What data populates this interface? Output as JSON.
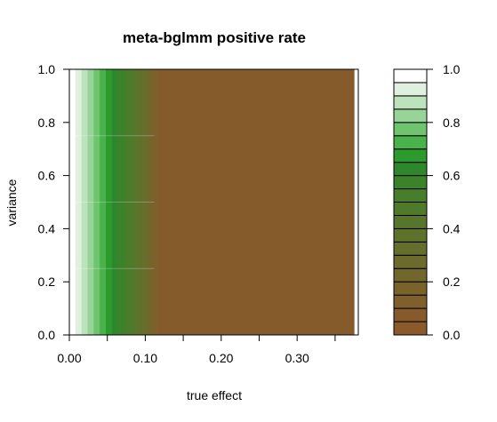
{
  "chart_data": {
    "type": "heatmap",
    "title": "meta-bglmm positive rate",
    "xlabel": "true effect",
    "ylabel": "variance",
    "xlim": [
      0.0,
      0.375
    ],
    "ylim": [
      0.0,
      1.0
    ],
    "x_ticks": [
      0.0,
      0.05,
      0.1,
      0.15,
      0.2,
      0.25,
      0.3,
      0.35
    ],
    "x_tick_labels": [
      "0.00",
      "",
      "0.10",
      "",
      "0.20",
      "",
      "0.30",
      ""
    ],
    "y_ticks": [
      0.0,
      0.2,
      0.4,
      0.6,
      0.8,
      1.0
    ],
    "y_tick_labels": [
      "0.0",
      "0.2",
      "0.4",
      "0.6",
      "0.8",
      "1.0"
    ],
    "colorbar": {
      "range": [
        0.0,
        1.0
      ],
      "levels": 20,
      "ticks": [
        0.0,
        0.2,
        0.4,
        0.6,
        0.8,
        1.0
      ],
      "tick_labels": [
        "0.0",
        "0.2",
        "0.4",
        "0.6",
        "0.8",
        "1.0"
      ],
      "colors": [
        "#8b5a2b",
        "#855b2b",
        "#7f5f2b",
        "#79632b",
        "#72672b",
        "#6c6b2b",
        "#666e2b",
        "#5f722b",
        "#58762b",
        "#507a2b",
        "#477e2b",
        "#3c822b",
        "#2e872b",
        "#2d9a2d",
        "#4ab24a",
        "#70c470",
        "#98d498",
        "#bde3bd",
        "#dff0df",
        "#ffffff"
      ]
    },
    "contour_level_boundaries_x": [
      0.0,
      0.008,
      0.016,
      0.024,
      0.032,
      0.04,
      0.048,
      0.056,
      0.064,
      0.072,
      0.079,
      0.085,
      0.09,
      0.095,
      0.1,
      0.104,
      0.108,
      0.112,
      0.116,
      0.375
    ],
    "description_note": "positive rate falls from 1 near true effect 0 to about 0 by true effect ~0.116, nearly independent of variance"
  }
}
